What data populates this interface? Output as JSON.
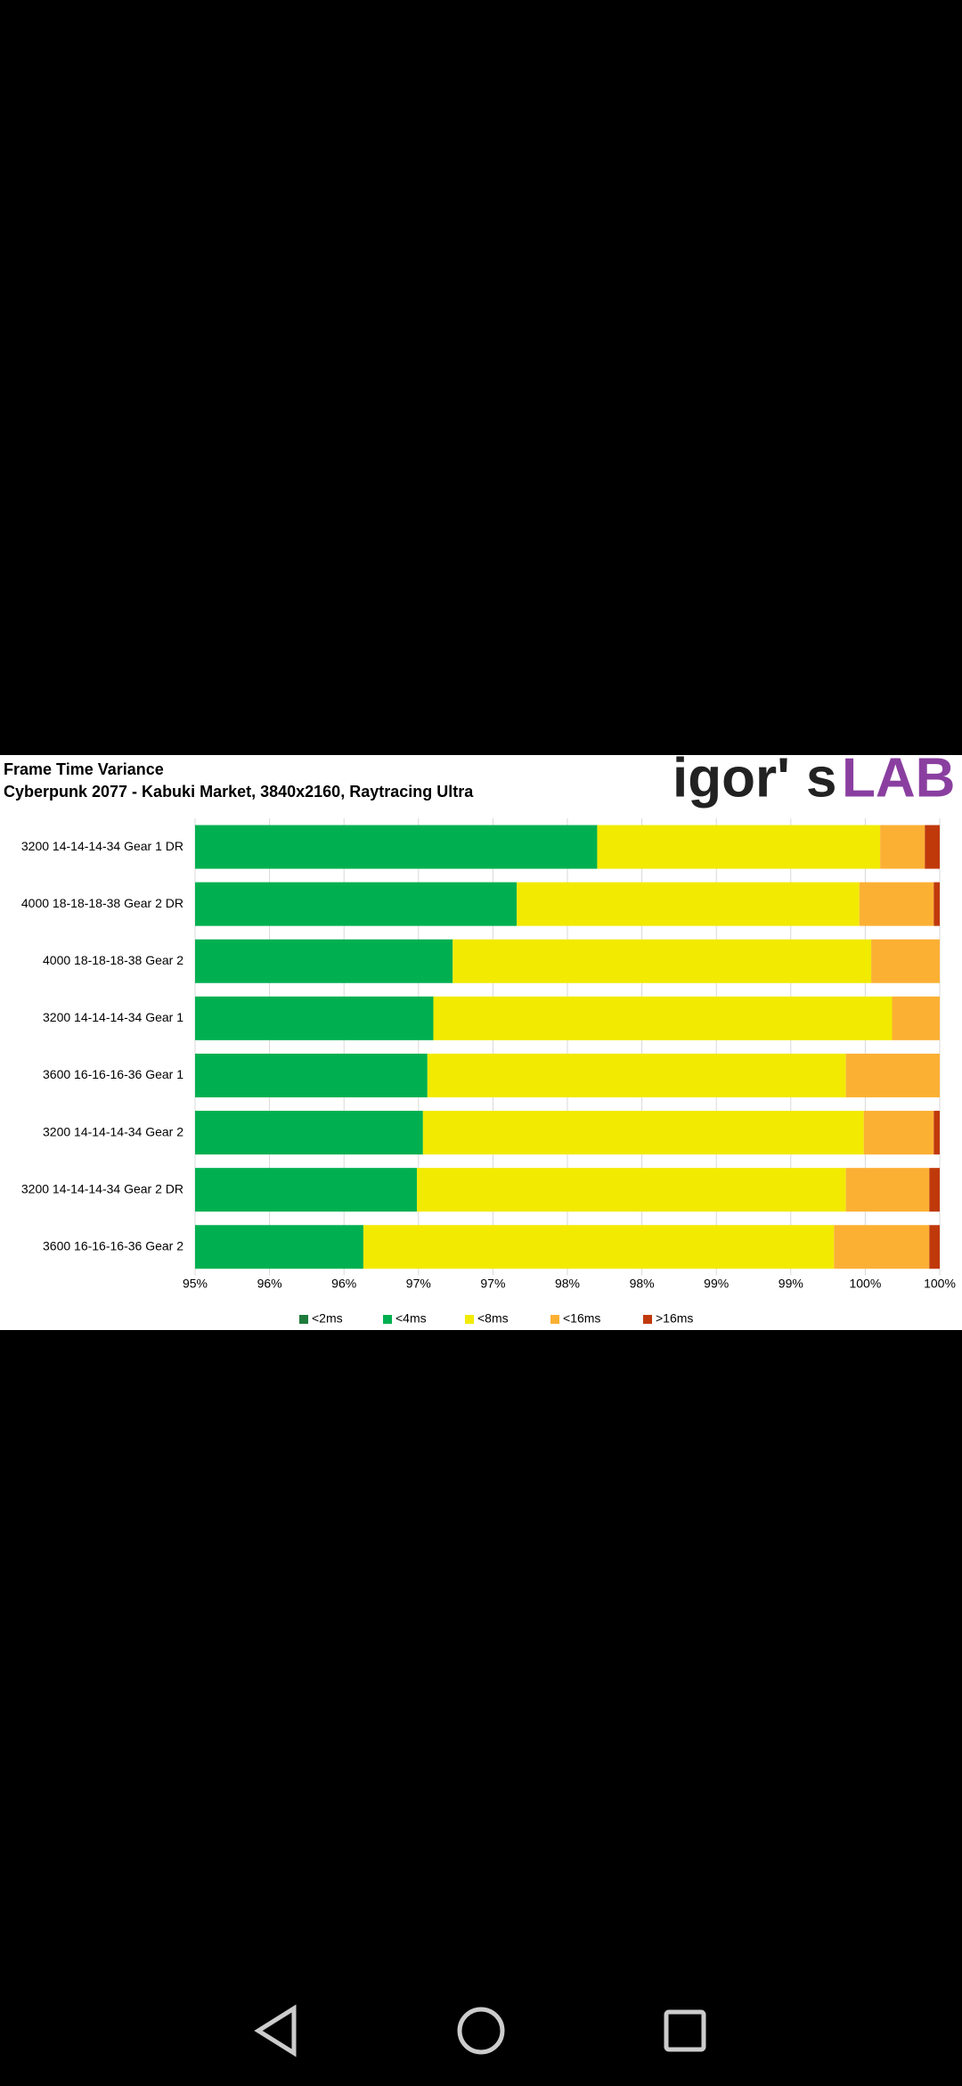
{
  "chart_data": {
    "type": "stacked_bar_horizontal",
    "title": "Frame Time Variance",
    "subtitle": "Cyberpunk 2077 - Kabuki Market, 3840x2160, Raytracing Ultra",
    "logo_dark": "igor'",
    "logo_mid": "s",
    "logo_accent": "LAB",
    "categories": [
      "3200 14-14-14-34 Gear 1 DR",
      "4000 18-18-18-38 Gear 2 DR",
      "4000 18-18-18-38 Gear 2",
      "3200 14-14-14-34 Gear 1",
      "3600 16-16-16-36 Gear 1",
      "3200 14-14-14-34 Gear 2",
      "3200 14-14-14-34 Gear 2 DR",
      "3600 16-16-16-36 Gear 2"
    ],
    "series": [
      {
        "name": "<2ms",
        "color": "#1e7b3c",
        "values": [
          null,
          null,
          null,
          null,
          null,
          null,
          null,
          null
        ]
      },
      {
        "name": "<4ms",
        "color": "#00b050",
        "values": [
          97.7,
          97.16,
          96.73,
          96.6,
          96.56,
          96.53,
          96.49,
          96.13
        ]
      },
      {
        "name": "<8ms",
        "color": "#f2ea00",
        "values": [
          1.9,
          2.3,
          2.81,
          3.08,
          2.81,
          2.96,
          2.88,
          3.16
        ]
      },
      {
        "name": "<16ms",
        "color": "#fbb034",
        "values": [
          0.3,
          0.5,
          0.46,
          0.32,
          0.63,
          0.47,
          0.56,
          0.64
        ]
      },
      {
        "name": ">16ms",
        "color": "#c0390b",
        "values": [
          0.1,
          0.04,
          0,
          0,
          0,
          0.04,
          0.07,
          0.07
        ]
      }
    ],
    "xlim": [
      95,
      100
    ],
    "xticks": [
      {
        "value": 95,
        "label": "95%"
      },
      {
        "value": 95.5,
        "label": "96%"
      },
      {
        "value": 96,
        "label": "96%"
      },
      {
        "value": 96.5,
        "label": "97%"
      },
      {
        "value": 97,
        "label": "97%"
      },
      {
        "value": 97.5,
        "label": "98%"
      },
      {
        "value": 98,
        "label": "98%"
      },
      {
        "value": 98.5,
        "label": "99%"
      },
      {
        "value": 99,
        "label": "99%"
      },
      {
        "value": 99.5,
        "label": "100%"
      },
      {
        "value": 100,
        "label": "100%"
      }
    ],
    "grid": true,
    "legend": "bottom"
  }
}
